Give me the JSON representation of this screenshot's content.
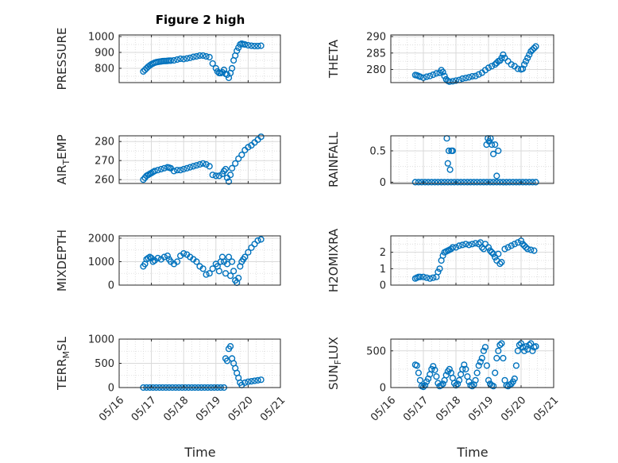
{
  "figure": {
    "title": "Figure 2 high",
    "xlabel": "Time"
  },
  "style": {
    "marker_color": "#0072BD",
    "axis_color": "#262626",
    "grid_color": "#d9d9d9"
  },
  "chart_data": [
    {
      "type": "scatter",
      "title": "Figure 2 high",
      "ylabel": "PRESSURE",
      "xlabel": "",
      "xlim": [
        "05/16",
        "05/21"
      ],
      "ylim": [
        710,
        1010
      ],
      "xticks": [
        "05/16",
        "05/17",
        "05/18",
        "05/19",
        "05/20",
        "05/21"
      ],
      "yticks": [
        800,
        900,
        1000
      ],
      "show_xticklabels": false,
      "grid": true,
      "x": [
        16.75,
        16.8,
        16.85,
        16.9,
        16.95,
        17.0,
        17.05,
        17.1,
        17.15,
        17.2,
        17.25,
        17.3,
        17.35,
        17.4,
        17.45,
        17.5,
        17.55,
        17.6,
        17.7,
        17.8,
        17.9,
        18.0,
        18.1,
        18.2,
        18.3,
        18.4,
        18.5,
        18.6,
        18.7,
        18.8,
        18.9,
        19.0,
        19.05,
        19.1,
        19.15,
        19.2,
        19.25,
        19.3,
        19.35,
        19.4,
        19.45,
        19.5,
        19.55,
        19.6,
        19.65,
        19.7,
        19.75,
        19.8,
        19.85,
        19.9,
        20.0,
        20.1,
        20.2,
        20.3,
        20.4
      ],
      "y": [
        780,
        790,
        800,
        810,
        818,
        825,
        830,
        835,
        838,
        840,
        842,
        843,
        845,
        846,
        846,
        847,
        848,
        848,
        850,
        855,
        860,
        858,
        862,
        866,
        872,
        875,
        880,
        880,
        875,
        870,
        830,
        800,
        780,
        770,
        770,
        775,
        790,
        765,
        760,
        740,
        770,
        800,
        850,
        880,
        910,
        930,
        950,
        955,
        952,
        950,
        945,
        942,
        940,
        940,
        942
      ]
    },
    {
      "type": "scatter",
      "ylabel": "THETA",
      "xlim": [
        "05/16",
        "05/21"
      ],
      "ylim": [
        276,
        290.5
      ],
      "xticks": [
        "05/16",
        "05/17",
        "05/18",
        "05/19",
        "05/20",
        "05/21"
      ],
      "yticks": [
        280,
        285,
        290
      ],
      "show_xticklabels": false,
      "grid": true,
      "x": [
        16.75,
        16.8,
        16.85,
        16.9,
        17.0,
        17.1,
        17.2,
        17.3,
        17.4,
        17.5,
        17.55,
        17.6,
        17.65,
        17.7,
        17.75,
        17.8,
        17.9,
        18.0,
        18.1,
        18.2,
        18.3,
        18.4,
        18.5,
        18.6,
        18.7,
        18.8,
        18.9,
        19.0,
        19.1,
        19.2,
        19.25,
        19.3,
        19.35,
        19.4,
        19.45,
        19.5,
        19.6,
        19.7,
        19.8,
        19.9,
        20.0,
        20.05,
        20.1,
        20.15,
        20.2,
        20.25,
        20.3,
        20.35,
        20.4,
        20.45
      ],
      "y": [
        278.3,
        278.2,
        278.0,
        277.8,
        277.5,
        277.8,
        278.0,
        278.4,
        278.8,
        279.0,
        279.8,
        279.2,
        278.0,
        277.0,
        276.5,
        276.3,
        276.4,
        276.6,
        276.8,
        277.2,
        277.4,
        277.6,
        277.9,
        278.0,
        278.5,
        279.0,
        279.8,
        280.5,
        281.0,
        281.5,
        282.0,
        282.5,
        282.7,
        283.5,
        284.5,
        283.5,
        282.5,
        281.5,
        281.0,
        280.2,
        280.0,
        280.2,
        281.5,
        282.5,
        283.5,
        284.5,
        285.5,
        286.0,
        286.5,
        287.0
      ]
    },
    {
      "type": "scatter",
      "ylabel": "AIR",
      "ylabel_sub": "T",
      "ylabel_rest": "EMP",
      "xlim": [
        "05/16",
        "05/21"
      ],
      "ylim": [
        258,
        283
      ],
      "xticks": [
        "05/16",
        "05/17",
        "05/18",
        "05/19",
        "05/20",
        "05/21"
      ],
      "yticks": [
        260,
        270,
        280
      ],
      "show_xticklabels": false,
      "grid": true,
      "x": [
        16.75,
        16.8,
        16.85,
        16.9,
        16.95,
        17.0,
        17.05,
        17.1,
        17.2,
        17.3,
        17.4,
        17.5,
        17.55,
        17.6,
        17.7,
        17.8,
        17.9,
        18.0,
        18.1,
        18.2,
        18.3,
        18.4,
        18.5,
        18.6,
        18.7,
        18.8,
        18.9,
        19.0,
        19.1,
        19.2,
        19.25,
        19.3,
        19.35,
        19.4,
        19.45,
        19.5,
        19.6,
        19.7,
        19.8,
        19.9,
        20.0,
        20.1,
        20.2,
        20.3,
        20.4
      ],
      "y": [
        260,
        261,
        262,
        262.5,
        263,
        263.5,
        264,
        264.5,
        265,
        265.5,
        266,
        266.5,
        266.3,
        266,
        264.5,
        265,
        265,
        265.5,
        266,
        266.5,
        267,
        267.5,
        268,
        268.5,
        268,
        267,
        262.5,
        262,
        262,
        263,
        264.5,
        265.5,
        261,
        259,
        262.5,
        266,
        268.5,
        271,
        273,
        275.5,
        277,
        278,
        279.5,
        281,
        282.5
      ]
    },
    {
      "type": "scatter",
      "ylabel": "RAINFALL",
      "xlim": [
        "05/16",
        "05/21"
      ],
      "ylim": [
        -0.02,
        0.74
      ],
      "xticks": [
        "05/16",
        "05/17",
        "05/18",
        "05/19",
        "05/20",
        "05/21"
      ],
      "yticks": [
        0,
        0.5
      ],
      "show_xticklabels": false,
      "grid": true,
      "x": [
        16.75,
        16.85,
        16.95,
        17.05,
        17.15,
        17.25,
        17.35,
        17.45,
        17.55,
        17.65,
        17.75,
        17.85,
        17.95,
        18.05,
        18.15,
        18.25,
        18.35,
        18.45,
        18.55,
        18.65,
        18.75,
        18.85,
        18.95,
        19.05,
        19.15,
        19.25,
        19.35,
        19.45,
        19.55,
        19.65,
        19.75,
        19.85,
        19.95,
        20.05,
        20.15,
        20.25,
        20.35,
        20.45,
        17.72,
        17.75,
        17.78,
        17.82,
        17.86,
        17.9,
        18.94,
        18.98,
        19.02,
        19.06,
        19.1,
        19.15,
        19.2,
        19.25,
        19.3
      ],
      "y": [
        0,
        0,
        0,
        0,
        0,
        0,
        0,
        0,
        0,
        0,
        0,
        0,
        0,
        0,
        0,
        0,
        0,
        0,
        0,
        0,
        0,
        0,
        0,
        0,
        0,
        0,
        0,
        0,
        0,
        0,
        0,
        0,
        0,
        0,
        0,
        0,
        0,
        0,
        0.7,
        0.3,
        0.5,
        0.2,
        0.5,
        0.5,
        0.6,
        0.7,
        0.65,
        0.7,
        0.6,
        0.45,
        0.6,
        0.1,
        0.5
      ]
    },
    {
      "type": "scatter",
      "ylabel": "MIXDEPTH",
      "xlim": [
        "05/16",
        "05/21"
      ],
      "ylim": [
        0,
        2100
      ],
      "xticks": [
        "05/16",
        "05/17",
        "05/18",
        "05/19",
        "05/20",
        "05/21"
      ],
      "yticks": [
        0,
        1000,
        2000
      ],
      "show_xticklabels": false,
      "grid": true,
      "x": [
        16.75,
        16.8,
        16.85,
        16.9,
        16.95,
        17.0,
        17.05,
        17.1,
        17.2,
        17.3,
        17.4,
        17.5,
        17.55,
        17.6,
        17.7,
        17.8,
        17.9,
        18.0,
        18.1,
        18.2,
        18.3,
        18.4,
        18.5,
        18.6,
        18.7,
        18.8,
        18.9,
        19.0,
        19.05,
        19.1,
        19.15,
        19.2,
        19.25,
        19.3,
        19.35,
        19.4,
        19.45,
        19.5,
        19.55,
        19.6,
        19.65,
        19.7,
        19.75,
        19.8,
        19.85,
        19.9,
        20.0,
        20.1,
        20.2,
        20.3,
        20.4
      ],
      "y": [
        800,
        900,
        1100,
        1150,
        1200,
        1150,
        1000,
        1050,
        1150,
        1100,
        1200,
        1250,
        1100,
        1000,
        900,
        1000,
        1250,
        1350,
        1300,
        1200,
        1100,
        1000,
        800,
        700,
        450,
        500,
        700,
        900,
        800,
        600,
        1000,
        1200,
        1000,
        500,
        900,
        1200,
        400,
        1000,
        600,
        200,
        100,
        300,
        800,
        1000,
        1100,
        1200,
        1400,
        1600,
        1750,
        1900,
        1950
      ]
    },
    {
      "type": "scatter",
      "ylabel": "H2OMIXRA",
      "xlim": [
        "05/16",
        "05/21"
      ],
      "ylim": [
        0,
        3
      ],
      "xticks": [
        "05/16",
        "05/17",
        "05/18",
        "05/19",
        "05/20",
        "05/21"
      ],
      "yticks": [
        0,
        1,
        2
      ],
      "show_xticklabels": false,
      "grid": true,
      "x": [
        16.75,
        16.8,
        16.85,
        16.9,
        17.0,
        17.1,
        17.2,
        17.3,
        17.4,
        17.45,
        17.5,
        17.55,
        17.6,
        17.65,
        17.7,
        17.75,
        17.8,
        17.85,
        17.9,
        18.0,
        18.1,
        18.2,
        18.3,
        18.4,
        18.5,
        18.6,
        18.7,
        18.75,
        18.8,
        18.85,
        18.9,
        19.0,
        19.05,
        19.1,
        19.15,
        19.2,
        19.25,
        19.3,
        19.35,
        19.4,
        19.5,
        19.6,
        19.7,
        19.8,
        19.9,
        20.0,
        20.05,
        20.1,
        20.15,
        20.2,
        20.3,
        20.4
      ],
      "y": [
        0.4,
        0.45,
        0.5,
        0.5,
        0.5,
        0.45,
        0.4,
        0.45,
        0.5,
        0.8,
        1.0,
        1.5,
        1.8,
        2.0,
        2.05,
        2.1,
        2.15,
        2.2,
        2.3,
        2.3,
        2.4,
        2.45,
        2.5,
        2.45,
        2.5,
        2.55,
        2.5,
        2.6,
        2.3,
        2.2,
        2.5,
        2.3,
        2.1,
        2.0,
        1.9,
        1.7,
        1.5,
        1.9,
        1.3,
        1.4,
        2.2,
        2.3,
        2.4,
        2.5,
        2.6,
        2.7,
        2.5,
        2.4,
        2.3,
        2.2,
        2.15,
        2.1
      ]
    },
    {
      "type": "scatter",
      "ylabel": "TERR",
      "ylabel_sub": "M",
      "ylabel_rest": "SL",
      "xlim": [
        "05/16",
        "05/21"
      ],
      "ylim": [
        0,
        1000
      ],
      "xticks": [
        "05/16",
        "05/17",
        "05/18",
        "05/19",
        "05/20",
        "05/21"
      ],
      "yticks": [
        0,
        500,
        1000
      ],
      "show_xticklabels": true,
      "grid": true,
      "x": [
        16.75,
        16.85,
        16.95,
        17.05,
        17.15,
        17.25,
        17.35,
        17.45,
        17.55,
        17.65,
        17.75,
        17.85,
        17.95,
        18.05,
        18.15,
        18.25,
        18.35,
        18.45,
        18.55,
        18.65,
        18.75,
        18.85,
        18.95,
        19.05,
        19.15,
        19.25,
        19.3,
        19.35,
        19.4,
        19.45,
        19.5,
        19.55,
        19.6,
        19.65,
        19.7,
        19.75,
        19.8,
        19.9,
        20.0,
        20.1,
        20.2,
        20.3,
        20.4
      ],
      "y": [
        0,
        0,
        0,
        0,
        0,
        0,
        0,
        0,
        0,
        0,
        0,
        0,
        0,
        0,
        0,
        0,
        0,
        0,
        0,
        0,
        0,
        0,
        0,
        0,
        0,
        0,
        600,
        550,
        800,
        850,
        600,
        500,
        400,
        300,
        200,
        100,
        50,
        100,
        120,
        130,
        140,
        150,
        160
      ]
    },
    {
      "type": "scatter",
      "ylabel": "SUN",
      "ylabel_sub": "F",
      "ylabel_rest": "LUX",
      "xlim": [
        "05/16",
        "05/21"
      ],
      "ylim": [
        0,
        660
      ],
      "xticks": [
        "05/16",
        "05/17",
        "05/18",
        "05/19",
        "05/20",
        "05/21"
      ],
      "yticks": [
        0,
        500
      ],
      "show_xticklabels": true,
      "grid": true,
      "x": [
        16.75,
        16.8,
        16.85,
        16.9,
        16.95,
        17.0,
        17.05,
        17.1,
        17.15,
        17.2,
        17.25,
        17.3,
        17.35,
        17.4,
        17.45,
        17.5,
        17.55,
        17.6,
        17.65,
        17.7,
        17.75,
        17.8,
        17.85,
        17.9,
        17.95,
        18.0,
        18.05,
        18.1,
        18.15,
        18.2,
        18.25,
        18.3,
        18.35,
        18.4,
        18.45,
        18.5,
        18.55,
        18.6,
        18.65,
        18.7,
        18.75,
        18.8,
        18.85,
        18.9,
        18.95,
        19.0,
        19.05,
        19.1,
        19.15,
        19.2,
        19.25,
        19.3,
        19.35,
        19.4,
        19.45,
        19.5,
        19.55,
        19.6,
        19.65,
        19.7,
        19.75,
        19.8,
        19.85,
        19.9,
        19.95,
        20.0,
        20.05,
        20.1,
        20.15,
        20.2,
        20.25,
        20.3,
        20.35,
        20.4,
        20.45
      ],
      "y": [
        310,
        300,
        200,
        100,
        20,
        10,
        30,
        80,
        120,
        180,
        250,
        290,
        240,
        150,
        60,
        20,
        30,
        50,
        100,
        170,
        220,
        250,
        200,
        130,
        60,
        30,
        50,
        100,
        180,
        250,
        310,
        250,
        150,
        80,
        30,
        20,
        40,
        100,
        200,
        300,
        350,
        400,
        500,
        550,
        300,
        100,
        50,
        30,
        20,
        200,
        400,
        500,
        580,
        600,
        400,
        100,
        30,
        20,
        40,
        50,
        80,
        120,
        300,
        500,
        580,
        600,
        550,
        500,
        560,
        520,
        580,
        600,
        500,
        550,
        560
      ]
    }
  ]
}
